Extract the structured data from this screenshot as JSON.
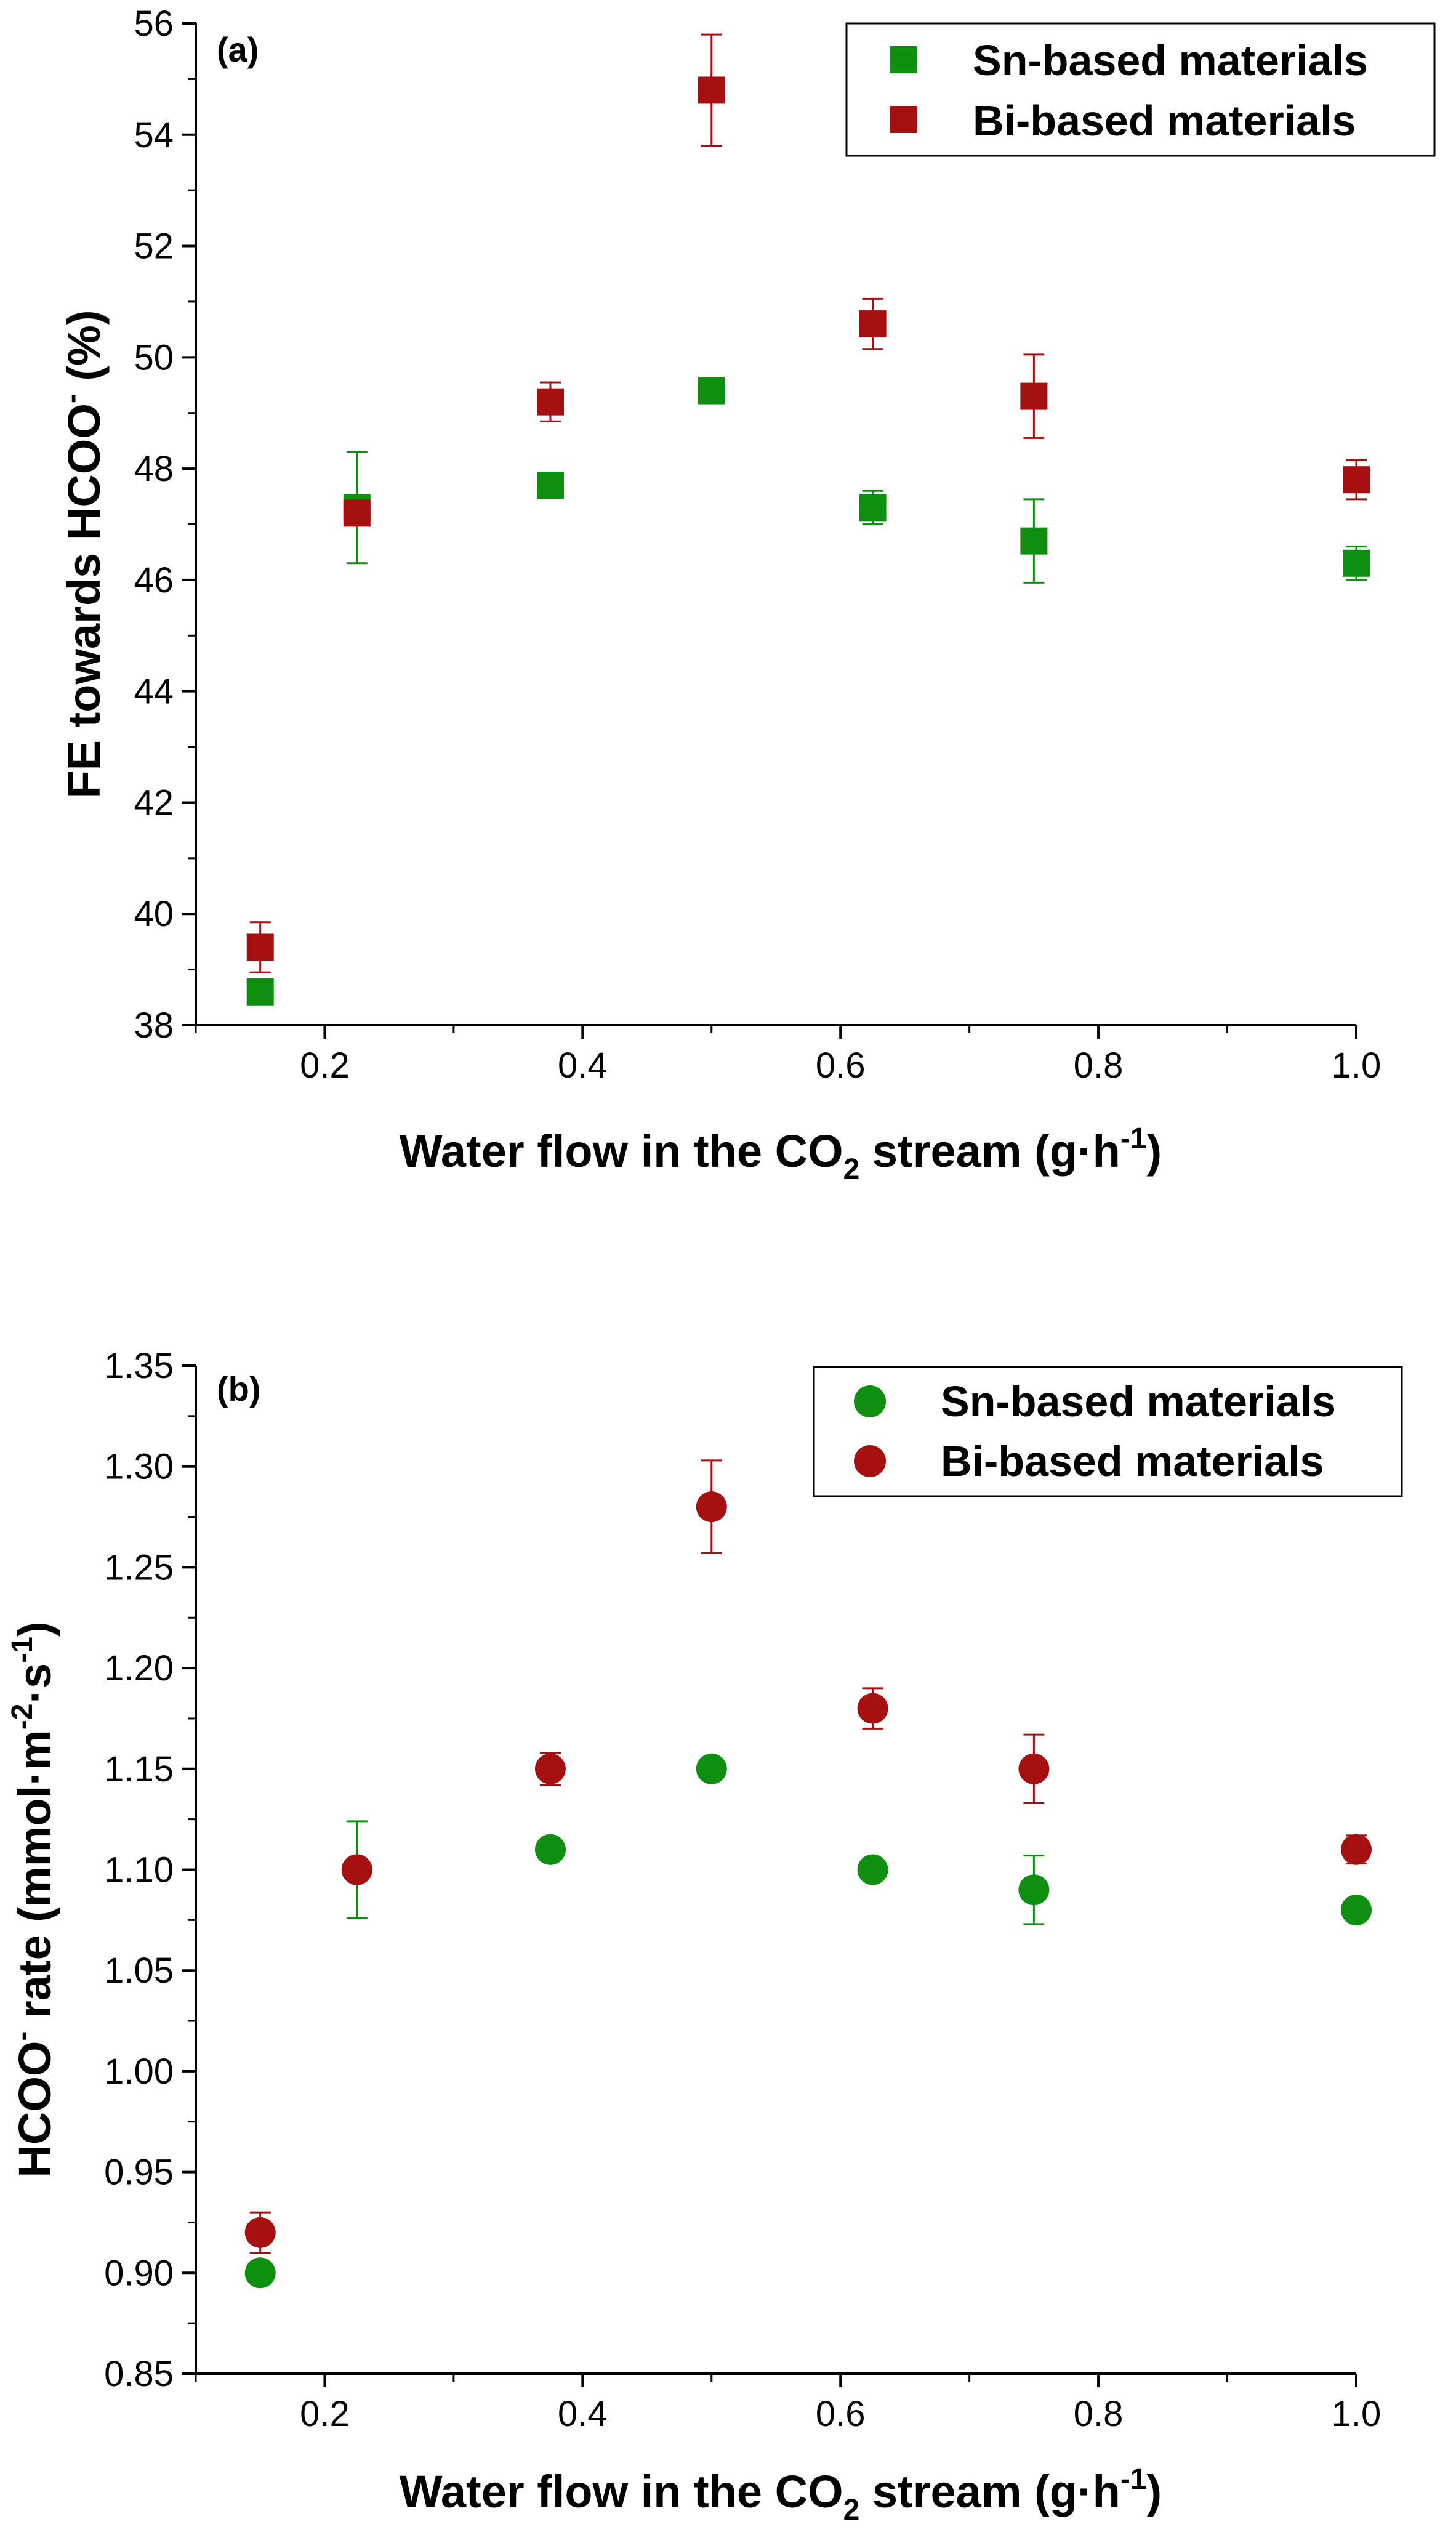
{
  "chart_data": [
    {
      "panel_label": "(a)",
      "type": "scatter",
      "marker": "square",
      "xlabel": {
        "pre": "Water flow in the CO",
        "sub": "2",
        "mid": " stream (g·h",
        "sup": "-1",
        "post": ")"
      },
      "ylabel": {
        "pre": "FE towards HCOO",
        "sup": "-",
        "post": " (%)"
      },
      "xlim": [
        0.1,
        1.0
      ],
      "ylim": [
        38,
        56
      ],
      "x_ticks": [
        0.2,
        0.4,
        0.6,
        0.8,
        1.0
      ],
      "x_tick_labels": [
        "0.2",
        "0.4",
        "0.6",
        "0.8",
        "1.0"
      ],
      "y_ticks": [
        38,
        40,
        42,
        44,
        46,
        48,
        50,
        52,
        54,
        56
      ],
      "y_tick_labels": [
        "38",
        "40",
        "42",
        "44",
        "46",
        "48",
        "50",
        "52",
        "54",
        "56"
      ],
      "legend_position": "top-right",
      "series": [
        {
          "name": "Sn-based materials",
          "color": "#0f8f0f",
          "x": [
            0.15,
            0.225,
            0.375,
            0.5,
            0.625,
            0.75,
            1.0
          ],
          "y": [
            38.6,
            47.3,
            47.7,
            49.4,
            47.3,
            46.7,
            46.3
          ],
          "err": [
            0.0,
            1.0,
            0.0,
            0.0,
            0.3,
            0.75,
            0.3
          ]
        },
        {
          "name": "Bi-based materials",
          "color": "#a50f0f",
          "x": [
            0.15,
            0.225,
            0.375,
            0.5,
            0.625,
            0.75,
            1.0
          ],
          "y": [
            39.4,
            47.2,
            49.2,
            54.8,
            50.6,
            49.3,
            47.8
          ],
          "err": [
            0.45,
            0.0,
            0.35,
            1.0,
            0.45,
            0.75,
            0.35
          ]
        }
      ]
    },
    {
      "panel_label": "(b)",
      "type": "scatter",
      "marker": "circle",
      "xlabel": {
        "pre": "Water flow in the CO",
        "sub": "2",
        "mid": " stream (g·h",
        "sup": "-1",
        "post": ")"
      },
      "ylabel": {
        "pre": "HCOO",
        "sup": "-",
        "post": " rate (mmol·m",
        "sup2": "-2",
        "post2": "·s",
        "sup3": "-1",
        "post3": ")"
      },
      "xlim": [
        0.1,
        1.0
      ],
      "ylim": [
        0.85,
        1.35
      ],
      "x_ticks": [
        0.2,
        0.4,
        0.6,
        0.8,
        1.0
      ],
      "x_tick_labels": [
        "0.2",
        "0.4",
        "0.6",
        "0.8",
        "1.0"
      ],
      "y_ticks": [
        0.85,
        0.9,
        0.95,
        1.0,
        1.05,
        1.1,
        1.15,
        1.2,
        1.25,
        1.3,
        1.35
      ],
      "y_tick_labels": [
        "0.85",
        "0.90",
        "0.95",
        "1.00",
        "1.05",
        "1.10",
        "1.15",
        "1.20",
        "1.25",
        "1.30",
        "1.35"
      ],
      "legend_position": "top-right",
      "series": [
        {
          "name": "Sn-based materials",
          "color": "#0f8f0f",
          "x": [
            0.15,
            0.225,
            0.375,
            0.5,
            0.625,
            0.75,
            1.0
          ],
          "y": [
            0.9,
            1.1,
            1.11,
            1.15,
            1.1,
            1.09,
            1.08
          ],
          "err": [
            0.0,
            0.024,
            0.0,
            0.0,
            0.0,
            0.017,
            0.0
          ]
        },
        {
          "name": "Bi-based materials",
          "color": "#a50f0f",
          "x": [
            0.15,
            0.225,
            0.375,
            0.5,
            0.625,
            0.75,
            1.0
          ],
          "y": [
            0.92,
            1.1,
            1.15,
            1.28,
            1.18,
            1.15,
            1.11
          ],
          "err": [
            0.01,
            0.0,
            0.008,
            0.023,
            0.01,
            0.017,
            0.007
          ]
        }
      ]
    }
  ]
}
